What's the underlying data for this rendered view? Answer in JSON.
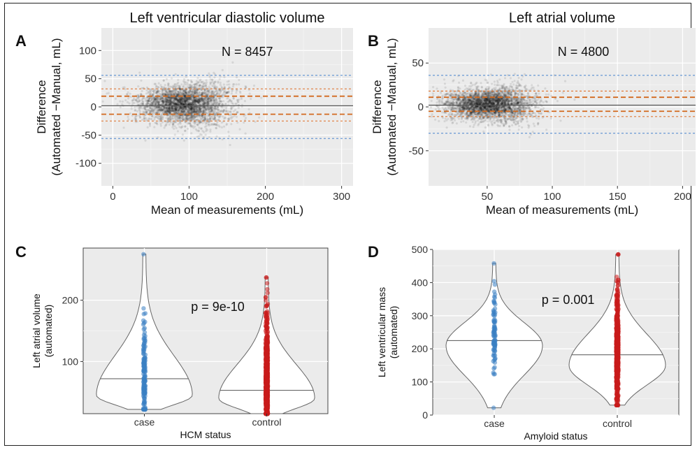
{
  "chart_data": [
    {
      "panel": "A",
      "type": "scatter",
      "title": "Left ventricular diastolic volume",
      "annotation": "N = 8457",
      "xlabel": "Mean of measurements (mL)",
      "ylabel": "Difference\n(Automated −Manual, mL)",
      "xlim": [
        -15,
        315
      ],
      "ylim": [
        -140,
        140
      ],
      "xticks": [
        0,
        100,
        200,
        300
      ],
      "yticks": [
        -100,
        -50,
        0,
        50,
        100
      ],
      "grid": true,
      "reference_lines": [
        {
          "y": 56,
          "color": "#5b8fd1",
          "style": "dotted"
        },
        {
          "y": 32,
          "color": "#e07b39",
          "style": "dotted"
        },
        {
          "y": 19,
          "color": "#d2691e",
          "style": "dashed"
        },
        {
          "y": 2,
          "color": "#555555",
          "style": "solid"
        },
        {
          "y": -13,
          "color": "#d2691e",
          "style": "dashed"
        },
        {
          "y": -25,
          "color": "#e07b39",
          "style": "dotted"
        },
        {
          "y": -56,
          "color": "#5b8fd1",
          "style": "dotted"
        }
      ],
      "point_cloud": {
        "n": 8457,
        "center_x": 88,
        "spread_x": 28,
        "center_y": 5,
        "spread_y": 22
      }
    },
    {
      "panel": "B",
      "type": "scatter",
      "title": "Left atrial volume",
      "annotation": "N = 4800",
      "xlabel": "Mean of measurements (mL)",
      "ylabel": "Difference\n(Automated −Manual, mL)",
      "xlim": [
        5,
        210
      ],
      "ylim": [
        -90,
        90
      ],
      "xticks": [
        50,
        100,
        150,
        200
      ],
      "yticks": [
        -50,
        0,
        50
      ],
      "grid": true,
      "reference_lines": [
        {
          "y": 36,
          "color": "#5b8fd1",
          "style": "dotted"
        },
        {
          "y": 18,
          "color": "#e07b39",
          "style": "dotted"
        },
        {
          "y": 11,
          "color": "#d2691e",
          "style": "dashed"
        },
        {
          "y": 2,
          "color": "#555555",
          "style": "solid"
        },
        {
          "y": -5,
          "color": "#d2691e",
          "style": "dashed"
        },
        {
          "y": -11,
          "color": "#e07b39",
          "style": "dotted"
        },
        {
          "y": -30,
          "color": "#5b8fd1",
          "style": "dotted"
        }
      ],
      "point_cloud": {
        "n": 4800,
        "center_x": 48,
        "spread_x": 16,
        "center_y": 3,
        "spread_y": 12
      }
    },
    {
      "panel": "C",
      "type": "violin",
      "annotation": "p = 9e-10",
      "xlabel": "HCM status",
      "ylabel": "Left atrial volume\n(automated)",
      "categories": [
        "case",
        "control"
      ],
      "ylim": [
        15,
        285
      ],
      "yticks": [
        100,
        200
      ],
      "grid": true,
      "groups": [
        {
          "category": "case",
          "median": 72,
          "min": 22,
          "max": 275,
          "mode": 45,
          "color": "#3a7fc2",
          "n_points": 160
        },
        {
          "category": "control",
          "median": 53,
          "min": 15,
          "max": 237,
          "mode": 40,
          "color": "#c91b1b",
          "n_points": 900
        }
      ]
    },
    {
      "panel": "D",
      "type": "violin",
      "annotation": "p = 0.001",
      "xlabel": "Amyloid status",
      "ylabel": "Left ventricular mass\n(automated)",
      "categories": [
        "case",
        "control"
      ],
      "ylim": [
        0,
        500
      ],
      "yticks": [
        0,
        100,
        200,
        300,
        400,
        500
      ],
      "grid": true,
      "groups": [
        {
          "category": "case",
          "median": 225,
          "min": 22,
          "max": 458,
          "mode": 210,
          "color": "#3a7fc2",
          "n_points": 90
        },
        {
          "category": "control",
          "median": 182,
          "min": 30,
          "max": 485,
          "mode": 150,
          "color": "#c91b1b",
          "n_points": 700
        }
      ]
    }
  ]
}
